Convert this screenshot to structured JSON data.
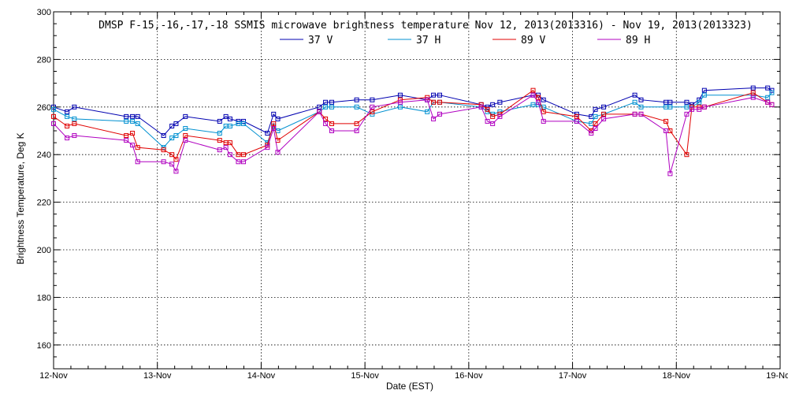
{
  "chart_data": {
    "type": "line",
    "title": "DMSP F-15,-16,-17,-18 SSMIS microwave brightness temperature Nov 12, 2013(2013316) - Nov 19, 2013(2013323)",
    "xlabel": "Date (EST)",
    "ylabel": "Brightness Temperature, Deg K",
    "xlim": [
      0,
      7
    ],
    "ylim": [
      150,
      300
    ],
    "x_ticks": [
      0,
      1,
      2,
      3,
      4,
      5,
      6,
      7
    ],
    "x_tick_labels": [
      "12-Nov",
      "13-Nov",
      "14-Nov",
      "15-Nov",
      "16-Nov",
      "17-Nov",
      "18-Nov",
      "19-Nov"
    ],
    "y_ticks": [
      160,
      180,
      200,
      220,
      240,
      260,
      280,
      300
    ],
    "y_tick_labels": [
      "160",
      "180",
      "200",
      "220",
      "240",
      "260",
      "280",
      "300"
    ],
    "grid": true,
    "legend_position": "top-center",
    "series": [
      {
        "name": "37 V",
        "color": "#0000b0",
        "x": [
          0.0,
          0.13,
          0.2,
          0.7,
          0.76,
          0.81,
          1.06,
          1.14,
          1.18,
          1.27,
          1.6,
          1.66,
          1.7,
          1.78,
          1.83,
          2.06,
          2.12,
          2.16,
          2.56,
          2.62,
          2.68,
          2.92,
          3.07,
          3.34,
          3.6,
          3.66,
          3.72,
          4.12,
          4.18,
          4.23,
          4.3,
          4.62,
          4.67,
          4.72,
          5.04,
          5.18,
          5.22,
          5.3,
          5.6,
          5.66,
          5.9,
          5.94,
          6.1,
          6.15,
          6.22,
          6.27,
          6.74,
          6.88,
          6.92
        ],
        "y": [
          260,
          258,
          260,
          256,
          256,
          256,
          248,
          252,
          253,
          256,
          254,
          256,
          255,
          254,
          254,
          249,
          257,
          255,
          260,
          262,
          262,
          263,
          263,
          265,
          263,
          265,
          265,
          261,
          260,
          261,
          262,
          265,
          265,
          263,
          257,
          256,
          259,
          260,
          265,
          263,
          262,
          262,
          262,
          261,
          263,
          267,
          268,
          268,
          267
        ]
      },
      {
        "name": "37 H",
        "color": "#0090d0",
        "x": [
          0.0,
          0.13,
          0.2,
          0.7,
          0.76,
          0.81,
          1.06,
          1.14,
          1.18,
          1.27,
          1.6,
          1.66,
          1.7,
          1.78,
          1.83,
          2.06,
          2.12,
          2.16,
          2.56,
          2.62,
          2.68,
          2.92,
          3.07,
          3.34,
          3.6,
          3.66,
          3.72,
          4.12,
          4.18,
          4.23,
          4.3,
          4.62,
          4.67,
          4.72,
          5.04,
          5.18,
          5.22,
          5.3,
          5.6,
          5.66,
          5.9,
          5.94,
          6.1,
          6.15,
          6.22,
          6.27,
          6.74,
          6.88,
          6.92
        ],
        "y": [
          259,
          256,
          255,
          254,
          254,
          253,
          243,
          247,
          248,
          251,
          249,
          252,
          252,
          253,
          253,
          245,
          252,
          250,
          258,
          260,
          260,
          260,
          257,
          260,
          258,
          262,
          262,
          260,
          258,
          257,
          258,
          261,
          261,
          260,
          254,
          253,
          256,
          257,
          262,
          260,
          260,
          260,
          260,
          260,
          262,
          265,
          265,
          264,
          266
        ]
      },
      {
        "name": "89 V",
        "color": "#e00000",
        "x": [
          0.0,
          0.13,
          0.2,
          0.7,
          0.76,
          0.81,
          1.06,
          1.14,
          1.18,
          1.27,
          1.6,
          1.66,
          1.7,
          1.78,
          1.83,
          2.06,
          2.12,
          2.16,
          2.56,
          2.62,
          2.68,
          2.92,
          3.07,
          3.34,
          3.6,
          3.66,
          3.72,
          4.12,
          4.18,
          4.23,
          4.3,
          4.62,
          4.67,
          4.72,
          5.04,
          5.18,
          5.22,
          5.3,
          5.6,
          5.66,
          5.9,
          5.94,
          6.1,
          6.15,
          6.22,
          6.27,
          6.74,
          6.88,
          6.92
        ],
        "y": [
          256,
          252,
          253,
          248,
          249,
          243,
          242,
          240,
          238,
          248,
          246,
          245,
          245,
          240,
          240,
          244,
          253,
          246,
          258,
          255,
          253,
          253,
          258,
          263,
          264,
          262,
          262,
          261,
          259,
          256,
          257,
          267,
          264,
          258,
          256,
          250,
          253,
          257,
          257,
          257,
          254,
          250,
          240,
          260,
          260,
          260,
          266,
          262,
          261
        ]
      },
      {
        "name": "89 H",
        "color": "#b000c0",
        "x": [
          0.0,
          0.13,
          0.2,
          0.7,
          0.76,
          0.81,
          1.06,
          1.14,
          1.18,
          1.27,
          1.6,
          1.66,
          1.7,
          1.78,
          1.83,
          2.06,
          2.12,
          2.16,
          2.56,
          2.62,
          2.68,
          2.92,
          3.07,
          3.34,
          3.6,
          3.66,
          3.72,
          4.12,
          4.18,
          4.23,
          4.3,
          4.62,
          4.67,
          4.72,
          5.04,
          5.18,
          5.22,
          5.3,
          5.6,
          5.66,
          5.9,
          5.94,
          6.1,
          6.15,
          6.22,
          6.27,
          6.74,
          6.88,
          6.92
        ],
        "y": [
          253,
          247,
          248,
          246,
          244,
          237,
          237,
          236,
          233,
          246,
          242,
          243,
          240,
          237,
          237,
          243,
          251,
          241,
          258,
          253,
          250,
          250,
          260,
          262,
          263,
          255,
          257,
          260,
          254,
          253,
          256,
          265,
          262,
          254,
          254,
          249,
          251,
          255,
          257,
          257,
          250,
          232,
          257,
          259,
          259,
          260,
          264,
          262,
          261
        ]
      }
    ]
  }
}
